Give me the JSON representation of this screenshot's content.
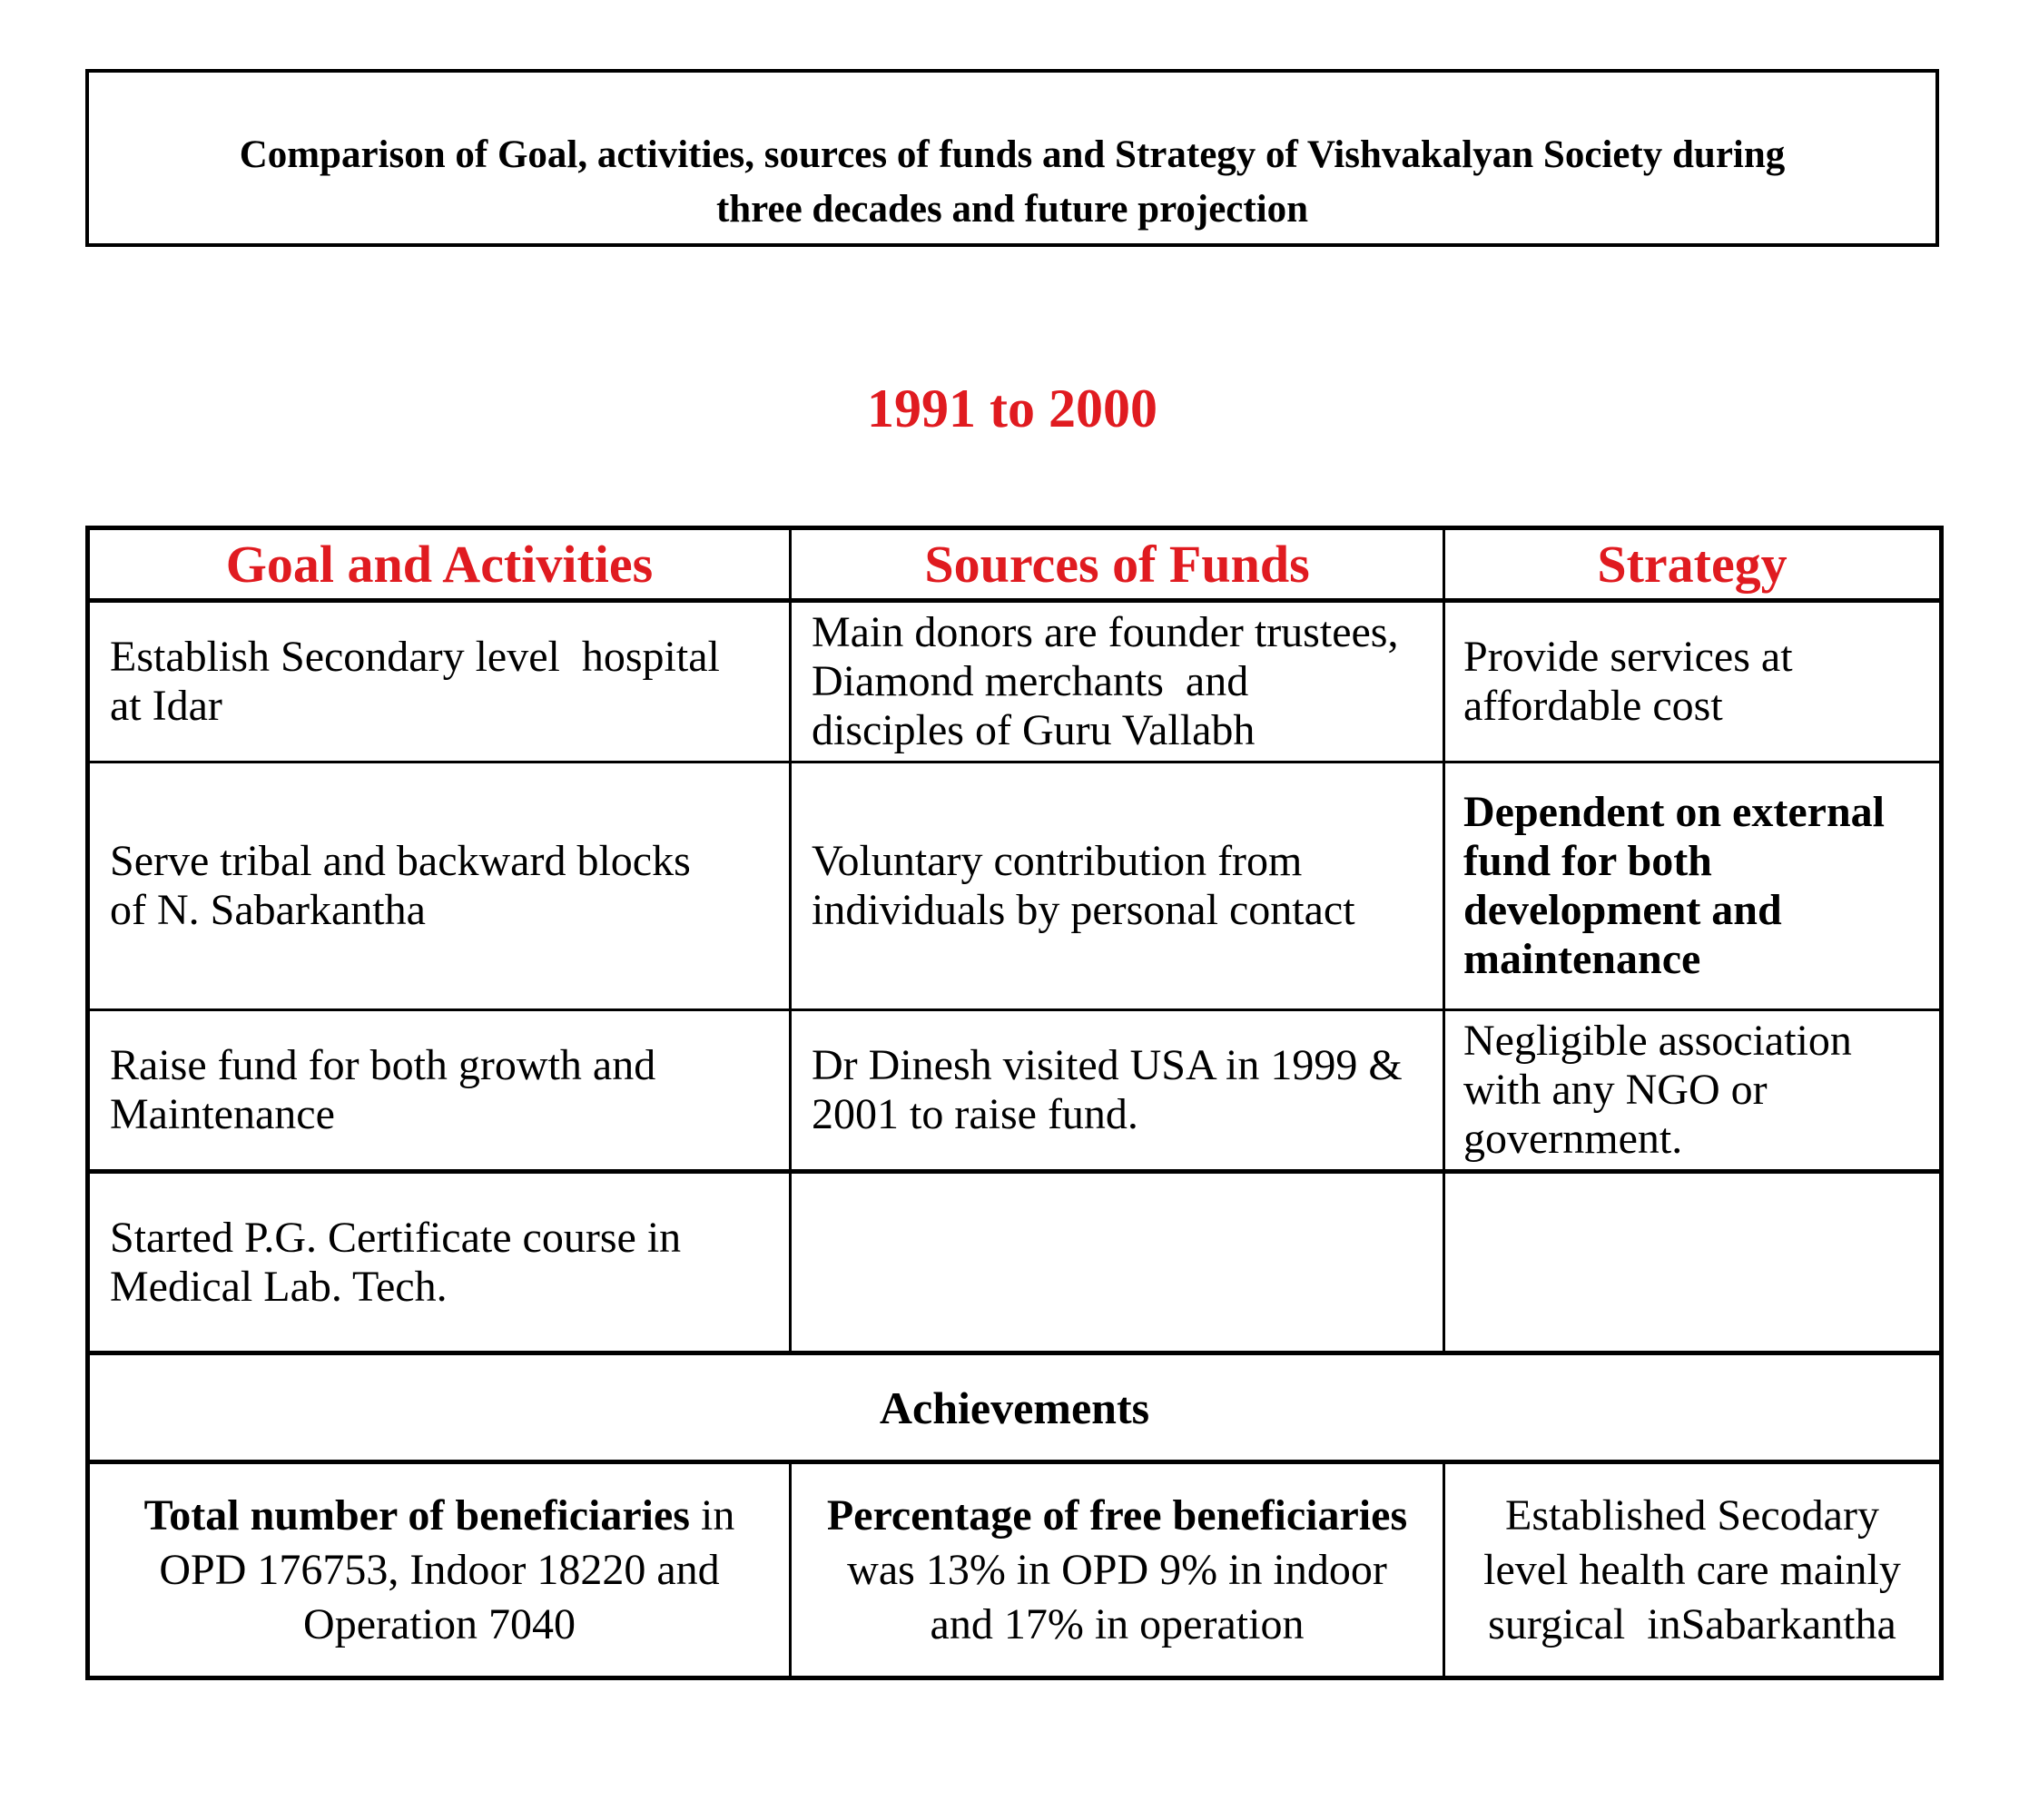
{
  "title": {
    "line1": "Comparison of Goal, activities, sources of funds and Strategy of Vishvakalyan Society during",
    "line2": "three decades and future projection"
  },
  "period_heading": "1991 to 2000",
  "colors": {
    "accent_red": "#e01b20",
    "text": "#000000",
    "border": "#000000",
    "background": "#ffffff"
  },
  "table": {
    "headers": [
      "Goal and Activities",
      "Sources of Funds",
      "Strategy"
    ],
    "rows": [
      {
        "goal": "Establish Secondary level  hospital at Idar",
        "funds": "Main donors are founder trustees, Diamond merchants  and disciples of Guru Vallabh",
        "strategy": "Provide services at affordable cost"
      },
      {
        "goal": "Serve tribal and backward blocks of N. Sabarkantha",
        "funds": "Voluntary contribution from individuals by personal contact",
        "strategy": "Dependent on external fund for both development and maintenance"
      },
      {
        "goal": "Raise fund for both growth and Maintenance",
        "funds": "Dr Dinesh visited USA in 1999 & 2001 to raise fund.",
        "strategy": "Negligible association with any NGO or government."
      },
      {
        "goal": "Started P.G. Certificate course in Medical Lab. Tech.",
        "funds": "",
        "strategy": ""
      }
    ],
    "achievements_label": "Achievements",
    "achievements": [
      {
        "bold": "Total number of beneficiaries",
        "rest": " in OPD 176753, Indoor 18220 and Operation 7040"
      },
      {
        "bold": "Percentage of free beneficiaries",
        "rest": " was 13% in OPD 9% in indoor and 17% in operation"
      },
      {
        "bold": "",
        "rest": "Established Secodary level health care mainly surgical  inSabarkantha"
      }
    ]
  }
}
